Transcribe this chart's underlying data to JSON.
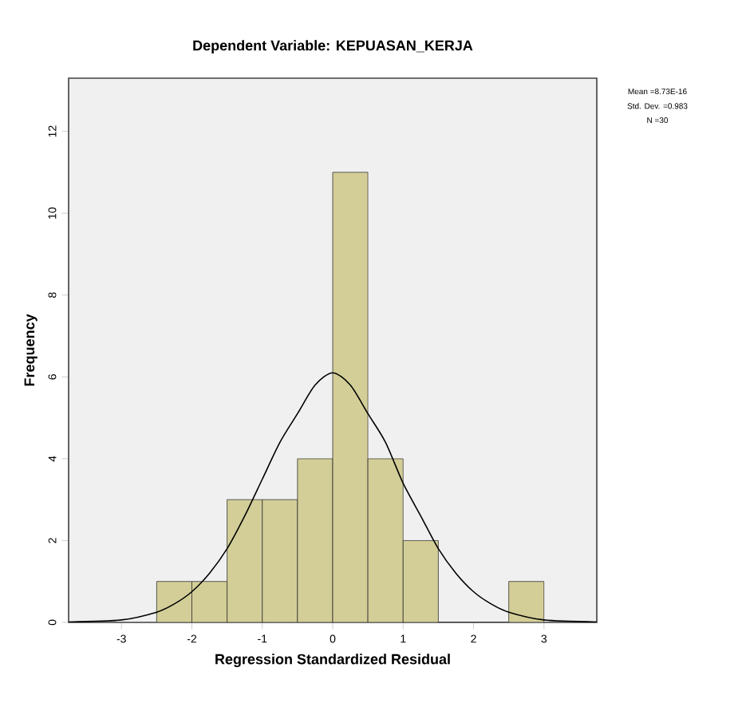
{
  "chart_data": {
    "type": "histogram",
    "title": "Dependent Variable: KEPUASAN_KERJA",
    "xlabel": "Regression Standardized Residual",
    "ylabel": "Frequency",
    "bins": [
      -2.5,
      -2,
      -1.5,
      -1,
      -0.5,
      0,
      0.5,
      1,
      1.5,
      2,
      2.5,
      3
    ],
    "values": [
      1,
      1,
      3,
      3,
      4,
      11,
      4,
      2,
      0,
      0,
      1
    ],
    "color": "#d3ce97",
    "series": [
      {
        "type": "line",
        "color": "#000000",
        "x": [
          -3.75,
          -3,
          -2.5,
          -2.25,
          -2,
          -1.75,
          -1.5,
          -1.25,
          -1,
          -0.75,
          -0.5,
          -0.25,
          0,
          0.25,
          0.5,
          0.75,
          1,
          1.25,
          1.5,
          1.75,
          2,
          2.25,
          2.5,
          3,
          3.75
        ],
        "values": [
          0.01,
          0.06,
          0.25,
          0.45,
          0.75,
          1.2,
          1.8,
          2.6,
          3.5,
          4.4,
          5.1,
          5.8,
          6.1,
          5.8,
          5.1,
          4.4,
          3.4,
          2.6,
          1.8,
          1.2,
          0.75,
          0.45,
          0.25,
          0.06,
          0.01
        ]
      }
    ],
    "xlim": [
      -3.75,
      3.75
    ],
    "ylim": [
      0,
      13.3
    ],
    "xticks": [
      -3,
      -2,
      -1,
      0,
      1,
      2,
      3
    ],
    "yticks": [
      0,
      2,
      4,
      6,
      8,
      10,
      12
    ],
    "grid": false,
    "annotations": [
      "Mean =8.73E-16",
      "Std. Dev. =0.983",
      "N =30"
    ]
  }
}
